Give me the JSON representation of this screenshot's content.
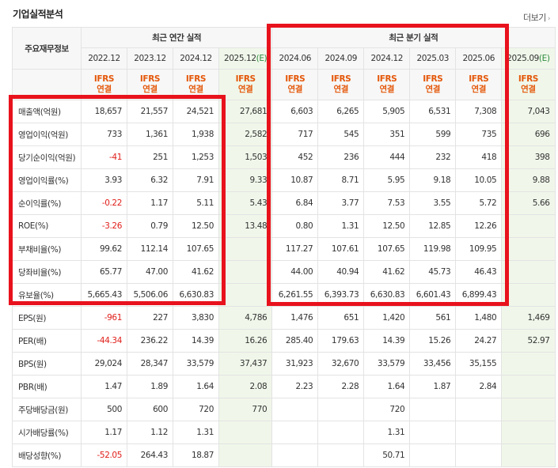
{
  "header": {
    "title": "기업실적분석",
    "more_label": "더보기",
    "more_arrow": "›"
  },
  "columns": {
    "label_header": "주요재무정보",
    "groups": {
      "annual": "최근 연간 실적",
      "quarter": "최근 분기 실적"
    },
    "periods": [
      "2022.12",
      "2023.12",
      "2024.12",
      "2025.12",
      "2024.06",
      "2024.09",
      "2024.12",
      "2025.03",
      "2025.06",
      "2025.09"
    ],
    "estimate_mark": "(E)",
    "ifrs_line1": "IFRS",
    "ifrs_line2": "연결"
  },
  "rows": [
    {
      "label": "매출액(억원)",
      "values": [
        "18,657",
        "21,557",
        "24,521",
        "27,681",
        "6,603",
        "6,265",
        "5,905",
        "6,531",
        "7,308",
        "7,043"
      ]
    },
    {
      "label": "영업이익(억원)",
      "values": [
        "733",
        "1,361",
        "1,938",
        "2,582",
        "717",
        "545",
        "351",
        "599",
        "735",
        "696"
      ]
    },
    {
      "label": "당기순이익(억원)",
      "values": [
        "-41",
        "251",
        "1,253",
        "1,503",
        "452",
        "236",
        "444",
        "232",
        "418",
        "398"
      ]
    },
    {
      "label": "영업이익률(%)",
      "values": [
        "3.93",
        "6.32",
        "7.91",
        "9.33",
        "10.87",
        "8.71",
        "5.95",
        "9.18",
        "10.05",
        "9.88"
      ]
    },
    {
      "label": "순이익률(%)",
      "values": [
        "-0.22",
        "1.17",
        "5.11",
        "5.43",
        "6.84",
        "3.77",
        "7.53",
        "3.55",
        "5.72",
        "5.66"
      ]
    },
    {
      "label": "ROE(%)",
      "values": [
        "-3.26",
        "0.79",
        "12.50",
        "13.48",
        "0.80",
        "1.31",
        "12.50",
        "12.85",
        "12.26",
        ""
      ]
    },
    {
      "label": "부채비율(%)",
      "values": [
        "99.62",
        "112.14",
        "107.65",
        "",
        "117.27",
        "107.61",
        "107.65",
        "119.98",
        "109.95",
        ""
      ]
    },
    {
      "label": "당좌비율(%)",
      "values": [
        "65.77",
        "47.00",
        "41.62",
        "",
        "44.00",
        "40.94",
        "41.62",
        "45.73",
        "46.43",
        ""
      ]
    },
    {
      "label": "유보율(%)",
      "values": [
        "5,665.43",
        "5,506.06",
        "6,630.83",
        "",
        "6,261.55",
        "6,393.73",
        "6,630.83",
        "6,601.43",
        "6,899.43",
        ""
      ]
    },
    {
      "label": "EPS(원)",
      "values": [
        "-961",
        "227",
        "3,830",
        "4,786",
        "1,476",
        "651",
        "1,420",
        "561",
        "1,480",
        "1,469"
      ]
    },
    {
      "label": "PER(배)",
      "values": [
        "-44.34",
        "236.22",
        "14.39",
        "16.26",
        "285.40",
        "179.63",
        "14.39",
        "15.26",
        "24.27",
        "52.97"
      ]
    },
    {
      "label": "BPS(원)",
      "values": [
        "29,024",
        "28,347",
        "33,579",
        "37,437",
        "31,923",
        "32,670",
        "33,579",
        "33,456",
        "35,155",
        ""
      ]
    },
    {
      "label": "PBR(배)",
      "values": [
        "1.47",
        "1.89",
        "1.64",
        "2.08",
        "2.23",
        "2.28",
        "1.64",
        "1.87",
        "2.84",
        ""
      ]
    },
    {
      "label": "주당배당금(원)",
      "values": [
        "500",
        "600",
        "720",
        "770",
        "",
        "",
        "720",
        "",
        "",
        ""
      ]
    },
    {
      "label": "시가배당률(%)",
      "values": [
        "1.17",
        "1.12",
        "1.31",
        "",
        "",
        "",
        "1.31",
        "",
        "",
        ""
      ]
    },
    {
      "label": "배당성향(%)",
      "values": [
        "-52.05",
        "264.43",
        "18.87",
        "",
        "",
        "",
        "50.71",
        "",
        "",
        ""
      ]
    }
  ],
  "colors": {
    "highlight_box": "#e8121d",
    "estimate_bg": "#f0f7ea",
    "negative": "#e0201b",
    "ifrs_text": "#e4580b"
  }
}
